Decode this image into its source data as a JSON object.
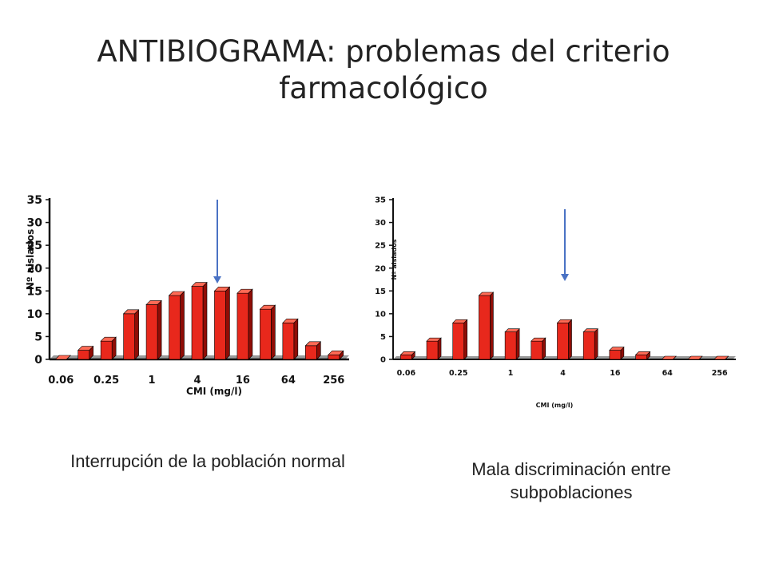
{
  "slide": {
    "title": "ANTIBIOGRAMA: problemas del criterio farmacológico",
    "caption_left": "Interrupción de la población normal",
    "caption_right": "Mala discriminación entre subpoblaciones"
  },
  "colors": {
    "bar_front": "#e8281c",
    "bar_side": "#8f0d06",
    "bar_top": "#ff6a55",
    "floor": "#9a9a9a",
    "arrow": "#4a72c4",
    "axis": "#111111"
  },
  "chart_data": [
    {
      "type": "bar",
      "style": "3d",
      "xlabel": "CMI (mg/l)",
      "ylabel": "Nº aislados",
      "ylim": [
        0,
        35
      ],
      "yticks": [
        0,
        5,
        10,
        15,
        20,
        25,
        30,
        35
      ],
      "x_tick_labels": [
        "0.06",
        "0.25",
        "1",
        "4",
        "16",
        "64",
        "256"
      ],
      "values": [
        0,
        2,
        4,
        10,
        12,
        14,
        16,
        15,
        14.5,
        11,
        8,
        3,
        1
      ],
      "breakpoint_arrow_after_bar": 6
    },
    {
      "type": "bar",
      "style": "3d",
      "xlabel": "CMI (mg/l)",
      "ylabel": "Nº aislados",
      "ylim": [
        0,
        35
      ],
      "yticks": [
        0,
        5,
        10,
        15,
        20,
        25,
        30,
        35
      ],
      "x_tick_labels": [
        "0.06",
        "0.25",
        "1",
        "4",
        "16",
        "64",
        "256"
      ],
      "values": [
        1,
        4,
        8,
        14,
        6,
        4,
        8,
        6,
        2,
        1,
        0,
        0,
        0
      ],
      "breakpoint_arrow_at_bar": 6
    }
  ]
}
